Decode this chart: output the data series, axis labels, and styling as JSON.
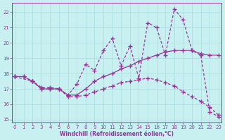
{
  "xlabel": "Windchill (Refroidissement éolien,°C)",
  "bg_color": "#c8f0f0",
  "line_color": "#993399",
  "grid_color": "#aadddd",
  "xlim": [
    -0.3,
    23.3
  ],
  "ylim": [
    14.8,
    22.6
  ],
  "yticks": [
    15,
    16,
    17,
    18,
    19,
    20,
    21,
    22
  ],
  "xticks": [
    0,
    1,
    2,
    3,
    4,
    5,
    6,
    7,
    8,
    9,
    10,
    11,
    12,
    13,
    14,
    15,
    16,
    17,
    18,
    19,
    20,
    21,
    22,
    23
  ],
  "line1_x": [
    0,
    1,
    2,
    3,
    4,
    5,
    6,
    7,
    8,
    9,
    10,
    11,
    12,
    13,
    14,
    15,
    16,
    17,
    18,
    19,
    20,
    21,
    22,
    23
  ],
  "line1_y": [
    17.8,
    17.8,
    17.5,
    17.0,
    17.0,
    17.0,
    16.6,
    16.6,
    17.0,
    17.5,
    17.8,
    18.0,
    18.3,
    18.5,
    18.8,
    19.0,
    19.2,
    19.4,
    19.5,
    19.5,
    19.5,
    19.3,
    19.2,
    19.2
  ],
  "line2_x": [
    0,
    2,
    3,
    4,
    5,
    6,
    7,
    8,
    9,
    10,
    11,
    12,
    13,
    14,
    15,
    16,
    17,
    18,
    19,
    20,
    21,
    22,
    23
  ],
  "line2_y": [
    17.8,
    17.5,
    17.0,
    17.0,
    17.0,
    16.6,
    17.3,
    18.6,
    18.2,
    19.5,
    20.3,
    18.5,
    19.8,
    17.7,
    21.3,
    21.0,
    19.2,
    22.2,
    21.5,
    19.5,
    19.2,
    15.5,
    15.2
  ],
  "line3_x": [
    0,
    1,
    2,
    3,
    4,
    5,
    6,
    7,
    8,
    9,
    10,
    11,
    12,
    13,
    14,
    15,
    16,
    17,
    18,
    19,
    20,
    21,
    22,
    23
  ],
  "line3_y": [
    17.8,
    17.8,
    17.5,
    17.1,
    17.1,
    17.0,
    16.5,
    16.5,
    16.6,
    16.8,
    17.0,
    17.2,
    17.4,
    17.5,
    17.6,
    17.7,
    17.6,
    17.4,
    17.2,
    16.8,
    16.5,
    16.2,
    15.8,
    15.3
  ]
}
